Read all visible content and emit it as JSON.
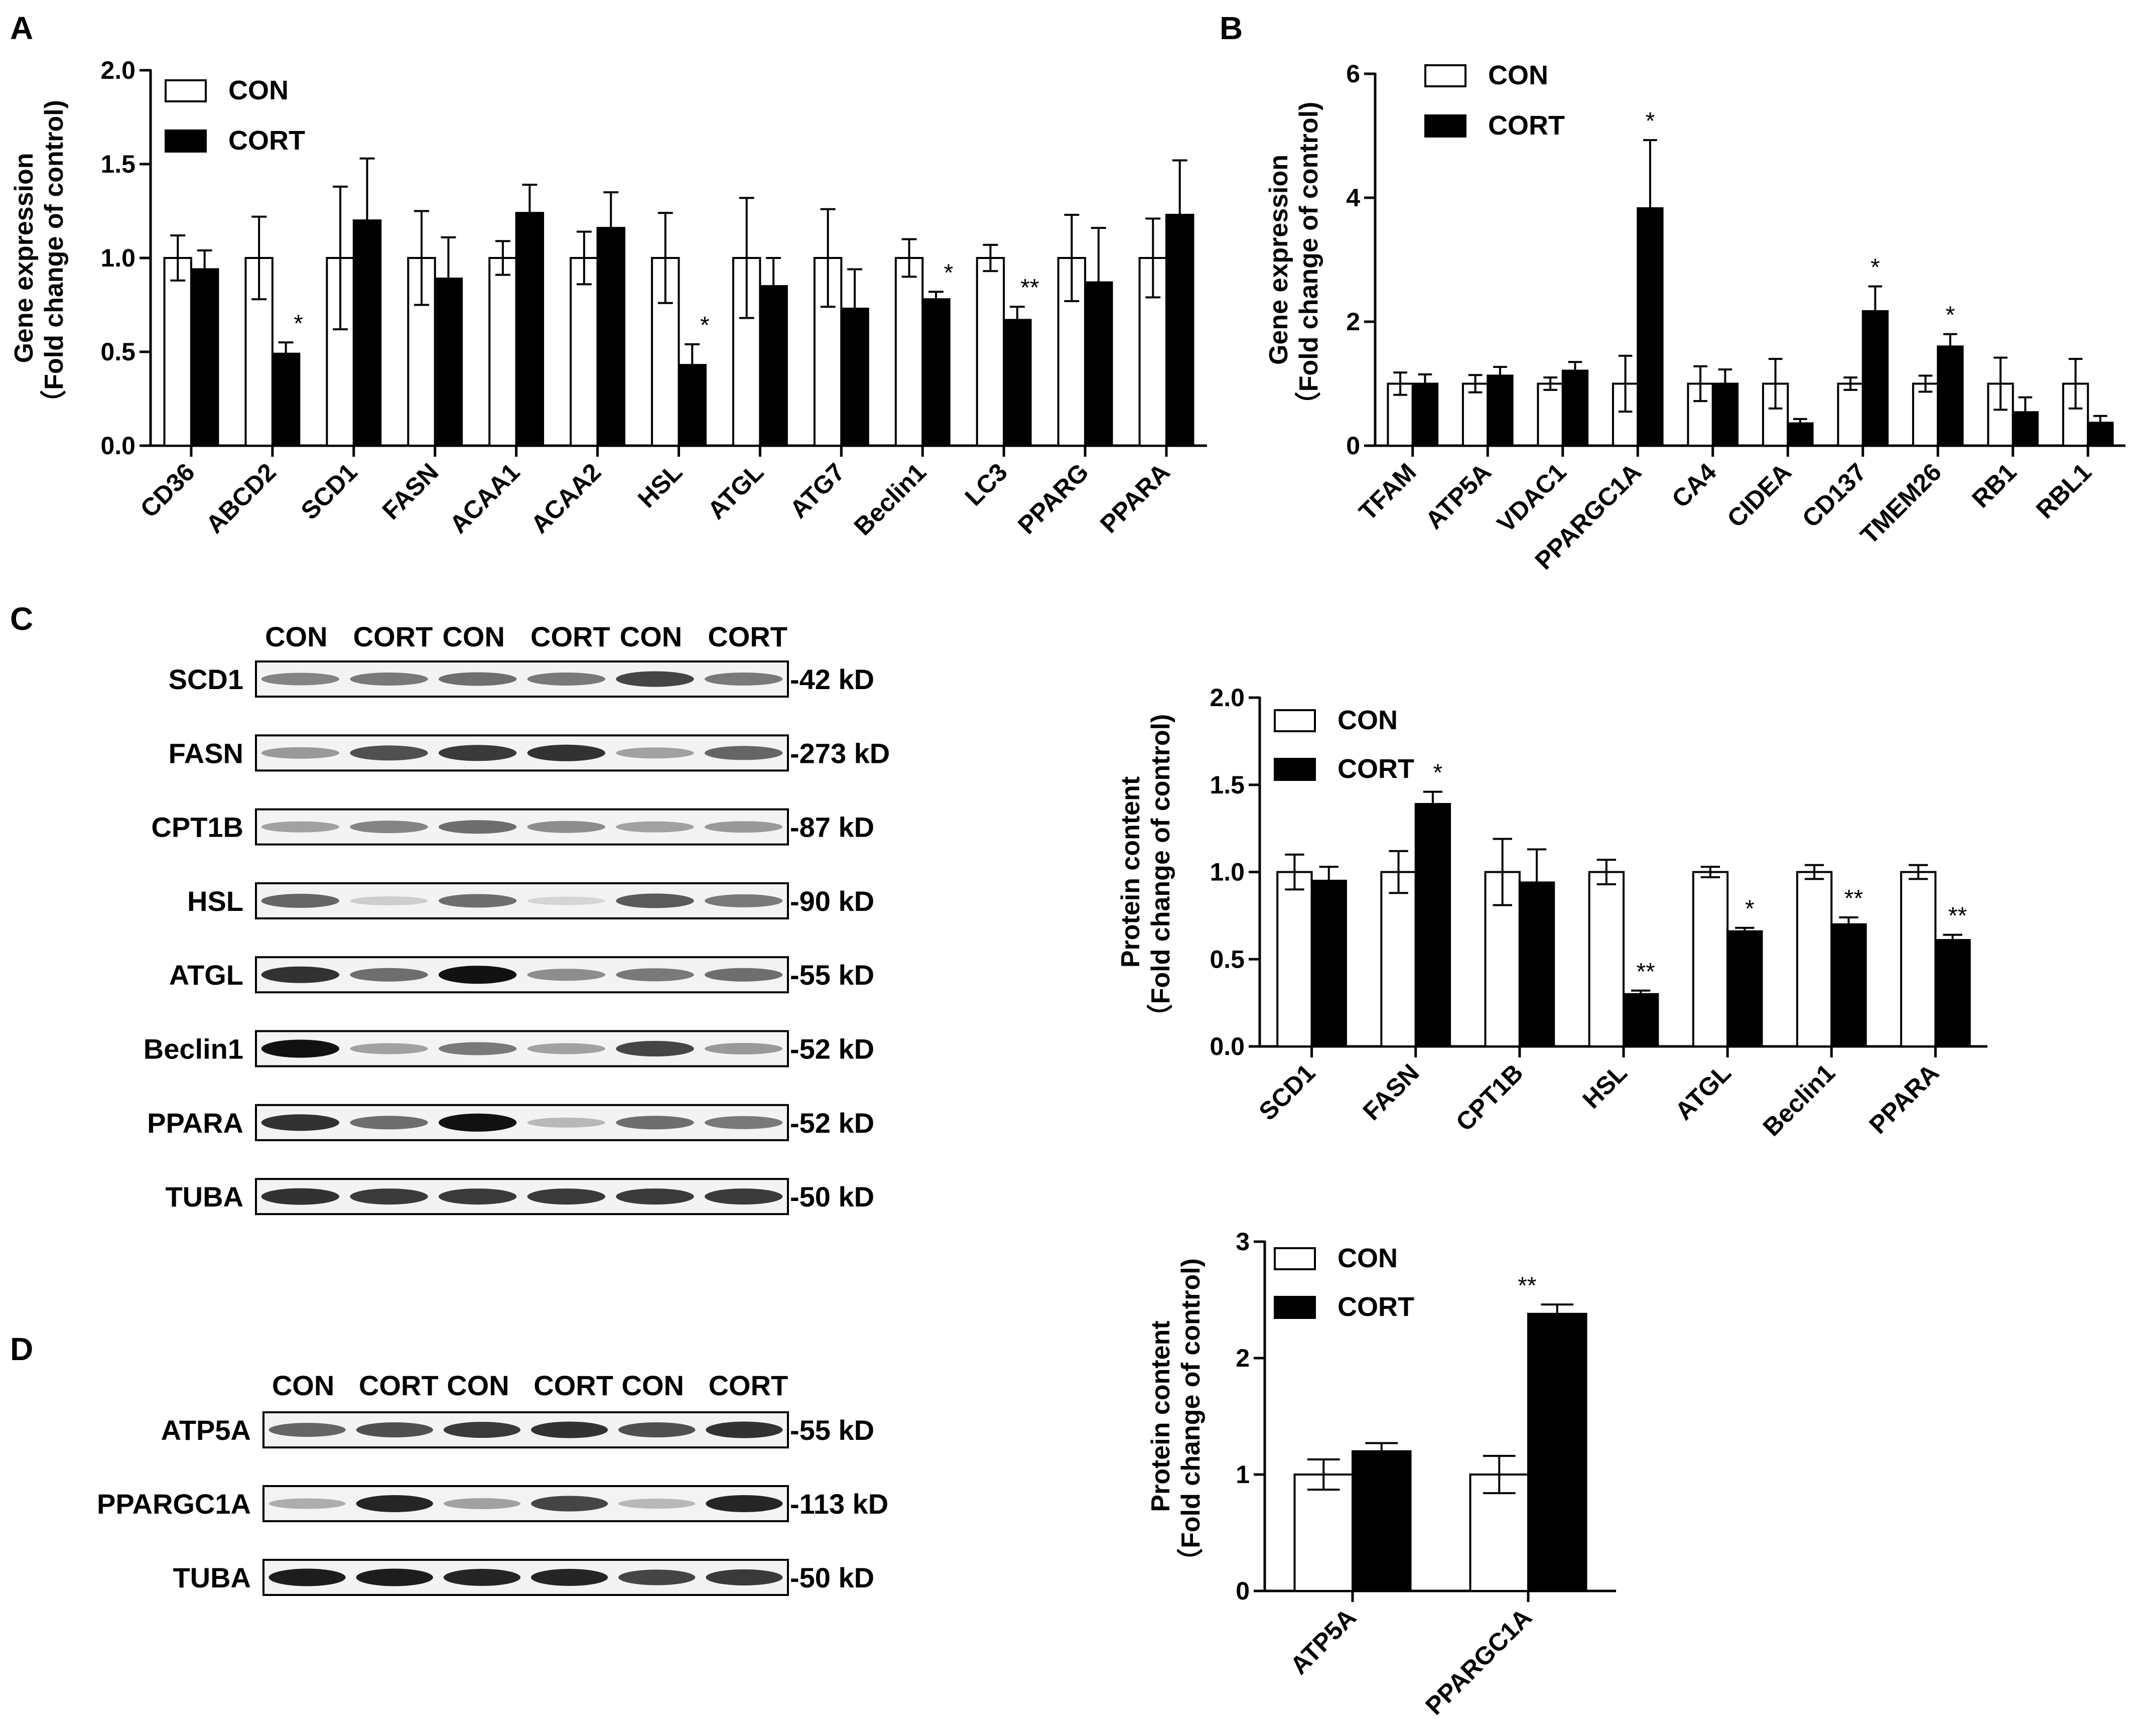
{
  "panel_labels": [
    "A",
    "B",
    "C",
    "D"
  ],
  "legend": {
    "con": "CON",
    "cort": "CORT"
  },
  "ylabels": {
    "gene": [
      "Gene expression",
      "（Fold change of control)"
    ],
    "protein": [
      "Protein content",
      "（Fold change of control)"
    ]
  },
  "chart_data": [
    {
      "id": "A",
      "type": "bar",
      "title": "",
      "categories": [
        "CD36",
        "ABCD2",
        "SCD1",
        "FASN",
        "ACAA1",
        "ACAA2",
        "HSL",
        "ATGL",
        "ATG7",
        "Beclin1",
        "LC3",
        "PPARG",
        "PPARA"
      ],
      "series": [
        {
          "name": "CON",
          "values": [
            1.0,
            1.0,
            1.0,
            1.0,
            1.0,
            1.0,
            1.0,
            1.0,
            1.0,
            1.0,
            1.0,
            1.0,
            1.0
          ],
          "errors": [
            0.12,
            0.22,
            0.38,
            0.25,
            0.09,
            0.14,
            0.24,
            0.32,
            0.26,
            0.1,
            0.07,
            0.23,
            0.21
          ]
        },
        {
          "name": "CORT",
          "values": [
            0.94,
            0.49,
            1.2,
            0.89,
            1.24,
            1.16,
            0.43,
            0.85,
            0.73,
            0.78,
            0.67,
            0.87,
            1.23
          ],
          "errors": [
            0.1,
            0.06,
            0.33,
            0.22,
            0.15,
            0.19,
            0.11,
            0.15,
            0.21,
            0.04,
            0.07,
            0.29,
            0.29
          ]
        }
      ],
      "significance": [
        "",
        "*",
        "",
        "",
        "",
        "",
        "*",
        "",
        "",
        "*",
        "**",
        "",
        ""
      ],
      "xlabel": "",
      "ylabel": "Gene expression (Fold change of control)",
      "ylim": [
        0,
        2
      ],
      "yticks": [
        "0.0",
        "0.5",
        "1.0",
        "1.5",
        "2.0"
      ]
    },
    {
      "id": "B",
      "type": "bar",
      "title": "",
      "categories": [
        "TFAM",
        "ATP5A",
        "VDAC1",
        "PPARGC1A",
        "CA4",
        "CIDEA",
        "CD137",
        "TMEM26",
        "RB1",
        "RBL1"
      ],
      "series": [
        {
          "name": "CON",
          "values": [
            1.0,
            1.0,
            1.0,
            1.0,
            1.0,
            1.0,
            1.0,
            1.0,
            1.0,
            1.0
          ],
          "errors": [
            0.18,
            0.14,
            0.1,
            0.45,
            0.28,
            0.4,
            0.1,
            0.13,
            0.42,
            0.4
          ]
        },
        {
          "name": "CORT",
          "values": [
            1.0,
            1.13,
            1.21,
            3.83,
            1.0,
            0.36,
            2.17,
            1.6,
            0.54,
            0.37
          ],
          "errors": [
            0.15,
            0.14,
            0.14,
            1.1,
            0.23,
            0.07,
            0.4,
            0.2,
            0.24,
            0.11
          ]
        }
      ],
      "significance": [
        "",
        "",
        "",
        "*",
        "",
        "",
        "*",
        "*",
        "",
        ""
      ],
      "xlabel": "",
      "ylabel": "Gene expression (Fold change of control)",
      "ylim": [
        0,
        6
      ],
      "yticks": [
        "0",
        "2",
        "4",
        "6"
      ]
    },
    {
      "id": "C",
      "type": "bar",
      "title": "",
      "categories": [
        "SCD1",
        "FASN",
        "CPT1B",
        "HSL",
        "ATGL",
        "Beclin1",
        "PPARA"
      ],
      "series": [
        {
          "name": "CON",
          "values": [
            1.0,
            1.0,
            1.0,
            1.0,
            1.0,
            1.0,
            1.0
          ],
          "errors": [
            0.1,
            0.12,
            0.19,
            0.07,
            0.03,
            0.04,
            0.04
          ]
        },
        {
          "name": "CORT",
          "values": [
            0.95,
            1.39,
            0.94,
            0.3,
            0.66,
            0.7,
            0.61
          ],
          "errors": [
            0.08,
            0.07,
            0.19,
            0.02,
            0.02,
            0.04,
            0.03
          ]
        }
      ],
      "significance": [
        "",
        "*",
        "",
        "**",
        "*",
        "**",
        "**"
      ],
      "xlabel": "",
      "ylabel": "Protein content (Fold change of control)",
      "ylim": [
        0,
        2
      ],
      "yticks": [
        "0.0",
        "0.5",
        "1.0",
        "1.5",
        "2.0"
      ]
    },
    {
      "id": "D",
      "type": "bar",
      "title": "",
      "categories": [
        "ATP5A",
        "PPARGC1A"
      ],
      "series": [
        {
          "name": "CON",
          "values": [
            1.0,
            1.0
          ],
          "errors": [
            0.13,
            0.16
          ]
        },
        {
          "name": "CORT",
          "values": [
            1.2,
            2.38
          ],
          "errors": [
            0.07,
            0.08
          ]
        }
      ],
      "significance": [
        "",
        "**"
      ],
      "xlabel": "",
      "ylabel": "Protein content (Fold change of control)",
      "ylim": [
        0,
        3
      ],
      "yticks": [
        "0",
        "1",
        "2",
        "3"
      ]
    }
  ],
  "blots": {
    "C": {
      "lane_labels": [
        "CON",
        "CORT",
        "CON",
        "CORT",
        "CON",
        "CORT"
      ],
      "rows": [
        {
          "name": "SCD1",
          "size": "-42 kD",
          "intensity": [
            0.45,
            0.5,
            0.55,
            0.5,
            0.75,
            0.5
          ]
        },
        {
          "name": "FASN",
          "size": "-273 kD",
          "intensity": [
            0.35,
            0.7,
            0.8,
            0.85,
            0.3,
            0.6
          ]
        },
        {
          "name": "CPT1B",
          "size": "-87 kD",
          "intensity": [
            0.3,
            0.45,
            0.55,
            0.4,
            0.3,
            0.35
          ]
        },
        {
          "name": "HSL",
          "size": "-90 kD",
          "intensity": [
            0.6,
            0.1,
            0.55,
            0.05,
            0.65,
            0.5
          ]
        },
        {
          "name": "ATGL",
          "size": "-55 kD",
          "intensity": [
            0.85,
            0.55,
            1.0,
            0.4,
            0.5,
            0.55
          ]
        },
        {
          "name": "Beclin1",
          "size": "-52 kD",
          "intensity": [
            1.0,
            0.3,
            0.5,
            0.3,
            0.75,
            0.35
          ]
        },
        {
          "name": "PPARA",
          "size": "-52 kD",
          "intensity": [
            0.85,
            0.55,
            1.0,
            0.2,
            0.55,
            0.5
          ]
        },
        {
          "name": "TUBA",
          "size": "-50 kD",
          "intensity": [
            0.85,
            0.8,
            0.8,
            0.8,
            0.8,
            0.8
          ]
        }
      ]
    },
    "D": {
      "lane_labels": [
        "CON",
        "CORT",
        "CON",
        "CORT",
        "CON",
        "CORT"
      ],
      "rows": [
        {
          "name": "ATP5A",
          "size": "-55 kD",
          "intensity": [
            0.6,
            0.7,
            0.8,
            0.85,
            0.7,
            0.85
          ]
        },
        {
          "name": "PPARGC1A",
          "size": "-113 kD",
          "intensity": [
            0.25,
            0.9,
            0.3,
            0.75,
            0.2,
            0.9
          ]
        },
        {
          "name": "TUBA",
          "size": "-50 kD",
          "intensity": [
            0.95,
            0.95,
            0.9,
            0.9,
            0.75,
            0.8
          ]
        }
      ]
    }
  }
}
